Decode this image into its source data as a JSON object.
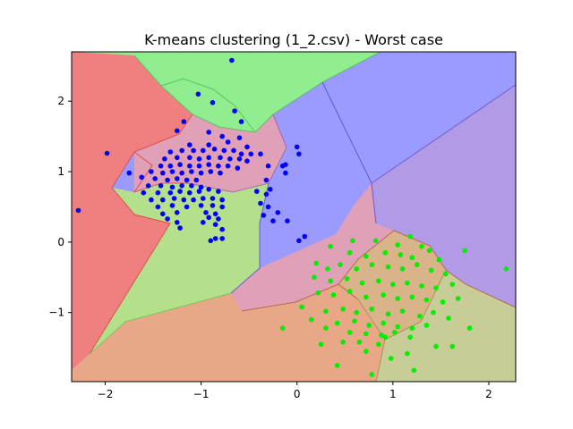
{
  "chart_data": {
    "type": "scatter",
    "title": "K-means clustering (1_2.csv) - Worst case",
    "xlabel": "",
    "ylabel": "",
    "xlim": [
      -2.35,
      2.28
    ],
    "ylim": [
      -1.98,
      2.7
    ],
    "xticks": [
      -2,
      -1,
      0,
      1,
      2
    ],
    "yticks": [
      -1,
      0,
      1,
      2
    ],
    "grid": false,
    "legend": "none",
    "background": "voronoi-cells",
    "region_colors": {
      "red": "#f08080",
      "green": "#90ee90",
      "blue": "#9a9aff",
      "purple": "#b19be6",
      "olive": "#c8cc96",
      "salmon": "#e8a888",
      "pink": "#e0a0b8",
      "lightgreen": "#b4e08c"
    },
    "series": [
      {
        "color": "#0000ff",
        "points": [
          [
            -0.68,
            2.58
          ],
          [
            -1.03,
            2.1
          ],
          [
            -0.88,
            1.98
          ],
          [
            -0.65,
            1.86
          ],
          [
            -1.18,
            1.71
          ],
          [
            -0.58,
            1.71
          ],
          [
            -1.25,
            1.58
          ],
          [
            -0.92,
            1.56
          ],
          [
            -0.78,
            1.5
          ],
          [
            -0.6,
            1.48
          ],
          [
            -1.12,
            1.38
          ],
          [
            -0.92,
            1.38
          ],
          [
            -0.72,
            1.42
          ],
          [
            -0.52,
            1.35
          ],
          [
            -1.32,
            1.28
          ],
          [
            -1.2,
            1.3
          ],
          [
            -1.08,
            1.3
          ],
          [
            -0.98,
            1.3
          ],
          [
            -0.86,
            1.32
          ],
          [
            -0.76,
            1.3
          ],
          [
            -0.66,
            1.3
          ],
          [
            -0.58,
            1.25
          ],
          [
            -0.48,
            1.25
          ],
          [
            -1.38,
            1.18
          ],
          [
            -1.25,
            1.2
          ],
          [
            -1.12,
            1.2
          ],
          [
            -1.02,
            1.18
          ],
          [
            -0.92,
            1.2
          ],
          [
            -0.8,
            1.2
          ],
          [
            -0.7,
            1.18
          ],
          [
            -0.6,
            1.18
          ],
          [
            -0.52,
            1.15
          ],
          [
            -1.42,
            1.08
          ],
          [
            -1.32,
            1.08
          ],
          [
            -1.22,
            1.1
          ],
          [
            -1.12,
            1.08
          ],
          [
            -1.02,
            1.08
          ],
          [
            -0.92,
            1.1
          ],
          [
            -0.82,
            1.08
          ],
          [
            -0.72,
            1.08
          ],
          [
            -0.62,
            1.05
          ],
          [
            -1.52,
            1.0
          ],
          [
            -1.4,
            0.98
          ],
          [
            -1.3,
            1.0
          ],
          [
            -1.2,
            0.98
          ],
          [
            -1.1,
            1.0
          ],
          [
            -1.0,
            0.98
          ],
          [
            -0.9,
            1.0
          ],
          [
            -0.8,
            0.98
          ],
          [
            -1.62,
            0.92
          ],
          [
            -1.48,
            0.9
          ],
          [
            -1.35,
            0.88
          ],
          [
            -1.25,
            0.9
          ],
          [
            -1.15,
            0.88
          ],
          [
            -1.05,
            0.88
          ],
          [
            -1.55,
            0.8
          ],
          [
            -1.42,
            0.8
          ],
          [
            -1.3,
            0.78
          ],
          [
            -1.2,
            0.8
          ],
          [
            -1.1,
            0.8
          ],
          [
            -1.0,
            0.78
          ],
          [
            -1.6,
            0.7
          ],
          [
            -1.45,
            0.7
          ],
          [
            -1.32,
            0.7
          ],
          [
            -1.22,
            0.72
          ],
          [
            -1.12,
            0.7
          ],
          [
            -1.02,
            0.72
          ],
          [
            -0.92,
            0.75
          ],
          [
            -0.82,
            0.72
          ],
          [
            -1.52,
            0.6
          ],
          [
            -1.4,
            0.6
          ],
          [
            -1.28,
            0.62
          ],
          [
            -1.18,
            0.6
          ],
          [
            -1.08,
            0.6
          ],
          [
            -0.98,
            0.62
          ],
          [
            -0.88,
            0.62
          ],
          [
            -0.78,
            0.6
          ],
          [
            -1.45,
            0.5
          ],
          [
            -1.3,
            0.52
          ],
          [
            -1.15,
            0.5
          ],
          [
            -1.0,
            0.52
          ],
          [
            -0.88,
            0.52
          ],
          [
            -0.78,
            0.5
          ],
          [
            -1.4,
            0.4
          ],
          [
            -1.25,
            0.42
          ],
          [
            -0.95,
            0.42
          ],
          [
            -0.85,
            0.4
          ],
          [
            -1.35,
            0.33
          ],
          [
            -0.92,
            0.35
          ],
          [
            -0.82,
            0.33
          ],
          [
            -1.25,
            0.28
          ],
          [
            -0.98,
            0.28
          ],
          [
            -0.85,
            0.25
          ],
          [
            -1.22,
            0.2
          ],
          [
            -0.78,
            0.18
          ],
          [
            -0.85,
            0.05
          ],
          [
            -0.78,
            0.05
          ],
          [
            -0.9,
            0.02
          ],
          [
            -0.38,
            1.25
          ],
          [
            -0.3,
            1.08
          ],
          [
            -0.15,
            1.08
          ],
          [
            -0.12,
            0.98
          ],
          [
            -0.32,
            0.88
          ],
          [
            -0.28,
            0.75
          ],
          [
            -0.42,
            0.72
          ],
          [
            -0.32,
            0.68
          ],
          [
            -0.38,
            0.55
          ],
          [
            -0.3,
            0.5
          ],
          [
            -0.2,
            0.42
          ],
          [
            -0.35,
            0.38
          ],
          [
            -0.25,
            0.3
          ],
          [
            -0.1,
            0.3
          ],
          [
            -0.12,
            1.1
          ],
          [
            0.0,
            1.35
          ],
          [
            0.02,
            1.25
          ],
          [
            0.08,
            0.08
          ],
          [
            0.02,
            0.02
          ],
          [
            -2.28,
            0.45
          ],
          [
            -1.98,
            1.26
          ],
          [
            -1.75,
            0.98
          ]
        ]
      },
      {
        "color": "#00ee00",
        "points": [
          [
            0.58,
            0.02
          ],
          [
            0.35,
            -0.06
          ],
          [
            0.82,
            0.02
          ],
          [
            1.05,
            -0.04
          ],
          [
            1.18,
            0.08
          ],
          [
            1.3,
            -0.06
          ],
          [
            0.55,
            -0.15
          ],
          [
            0.72,
            -0.2
          ],
          [
            0.92,
            -0.15
          ],
          [
            1.08,
            -0.18
          ],
          [
            1.2,
            -0.22
          ],
          [
            1.38,
            -0.12
          ],
          [
            1.48,
            -0.25
          ],
          [
            1.75,
            -0.12
          ],
          [
            2.18,
            -0.38
          ],
          [
            0.2,
            -0.3
          ],
          [
            0.32,
            -0.38
          ],
          [
            0.45,
            -0.32
          ],
          [
            0.62,
            -0.38
          ],
          [
            0.78,
            -0.32
          ],
          [
            0.95,
            -0.35
          ],
          [
            1.1,
            -0.38
          ],
          [
            1.25,
            -0.32
          ],
          [
            1.4,
            -0.4
          ],
          [
            1.55,
            -0.45
          ],
          [
            0.18,
            -0.5
          ],
          [
            0.35,
            -0.55
          ],
          [
            0.52,
            -0.52
          ],
          [
            0.68,
            -0.58
          ],
          [
            0.85,
            -0.55
          ],
          [
            1.0,
            -0.6
          ],
          [
            1.15,
            -0.58
          ],
          [
            1.3,
            -0.62
          ],
          [
            1.45,
            -0.65
          ],
          [
            1.62,
            -0.6
          ],
          [
            0.22,
            -0.72
          ],
          [
            0.38,
            -0.75
          ],
          [
            0.55,
            -0.7
          ],
          [
            0.72,
            -0.78
          ],
          [
            0.9,
            -0.75
          ],
          [
            1.05,
            -0.8
          ],
          [
            1.2,
            -0.78
          ],
          [
            1.35,
            -0.82
          ],
          [
            1.52,
            -0.85
          ],
          [
            1.68,
            -0.8
          ],
          [
            0.05,
            -0.92
          ],
          [
            0.3,
            -0.98
          ],
          [
            0.48,
            -0.95
          ],
          [
            0.62,
            -1.0
          ],
          [
            0.78,
            -0.95
          ],
          [
            0.95,
            -1.02
          ],
          [
            1.1,
            -0.98
          ],
          [
            1.28,
            -1.05
          ],
          [
            1.42,
            -1.0
          ],
          [
            1.58,
            -1.08
          ],
          [
            0.15,
            -1.1
          ],
          [
            0.42,
            -1.15
          ],
          [
            0.6,
            -1.12
          ],
          [
            0.75,
            -1.18
          ],
          [
            0.9,
            -1.15
          ],
          [
            1.05,
            -1.2
          ],
          [
            1.2,
            -1.22
          ],
          [
            1.35,
            -1.18
          ],
          [
            0.55,
            -1.28
          ],
          [
            0.72,
            -1.3
          ],
          [
            0.88,
            -1.32
          ],
          [
            1.02,
            -1.28
          ],
          [
            1.18,
            -1.35
          ],
          [
            0.65,
            -1.42
          ],
          [
            0.85,
            -1.45
          ],
          [
            0.25,
            -1.45
          ],
          [
            0.48,
            -1.42
          ],
          [
            0.72,
            -1.55
          ],
          [
            1.45,
            -1.48
          ],
          [
            1.62,
            -1.48
          ],
          [
            1.8,
            -1.22
          ],
          [
            0.3,
            -1.22
          ],
          [
            -0.15,
            -1.22
          ],
          [
            0.42,
            -1.75
          ],
          [
            0.78,
            -1.88
          ],
          [
            1.22,
            -1.82
          ],
          [
            0.98,
            -1.65
          ],
          [
            1.15,
            -1.58
          ],
          [
            0.92,
            -1.35
          ]
        ]
      }
    ]
  }
}
